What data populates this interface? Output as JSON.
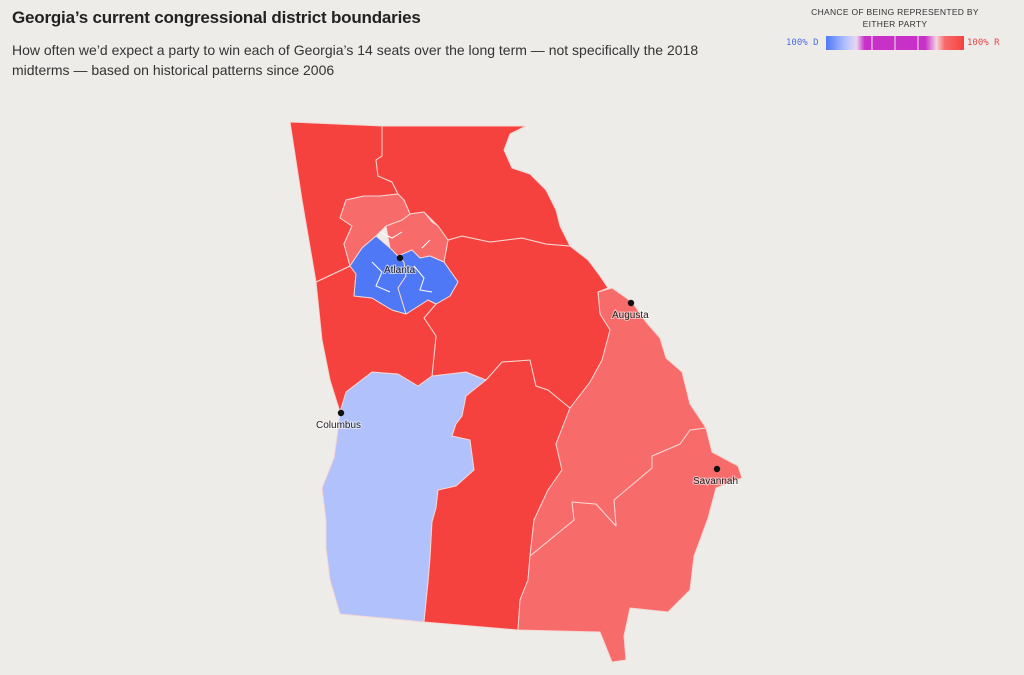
{
  "header": {
    "title": "Georgia’s current congressional district boundaries",
    "subtitle": "How often we’d expect a party to win each of Georgia’s 14 seats over the long term — not specifically the 2018 midterms — based on historical patterns since 2006"
  },
  "legend": {
    "title": "CHANCE OF BEING REPRESENTED BY EITHER PARTY",
    "left_label": "100% D",
    "right_label": "100% R",
    "colors": {
      "strong_d": "#4f78f6",
      "lean_d": "#b0c1fc",
      "tossup": "#c831c8",
      "lean_r": "#f76b6b",
      "strong_r": "#f5423f"
    }
  },
  "map": {
    "state": "Georgia",
    "district_colors": {
      "northwest": "#f5423f",
      "northeast": "#f5423f",
      "west_central": "#f5423f",
      "east_central": "#f5423f",
      "south_central": "#f5423f",
      "metro_north_a": "#f76b6b",
      "metro_north_b": "#f76b6b",
      "atlanta_west": "#4f78f6",
      "atlanta_east": "#4f78f6",
      "southwest": "#b0c1fc",
      "augusta_corridor": "#f76b6b",
      "southeast": "#f76b6b"
    },
    "cities": [
      {
        "name": "Atlanta"
      },
      {
        "name": "Augusta"
      },
      {
        "name": "Columbus"
      },
      {
        "name": "Savannah"
      }
    ]
  }
}
